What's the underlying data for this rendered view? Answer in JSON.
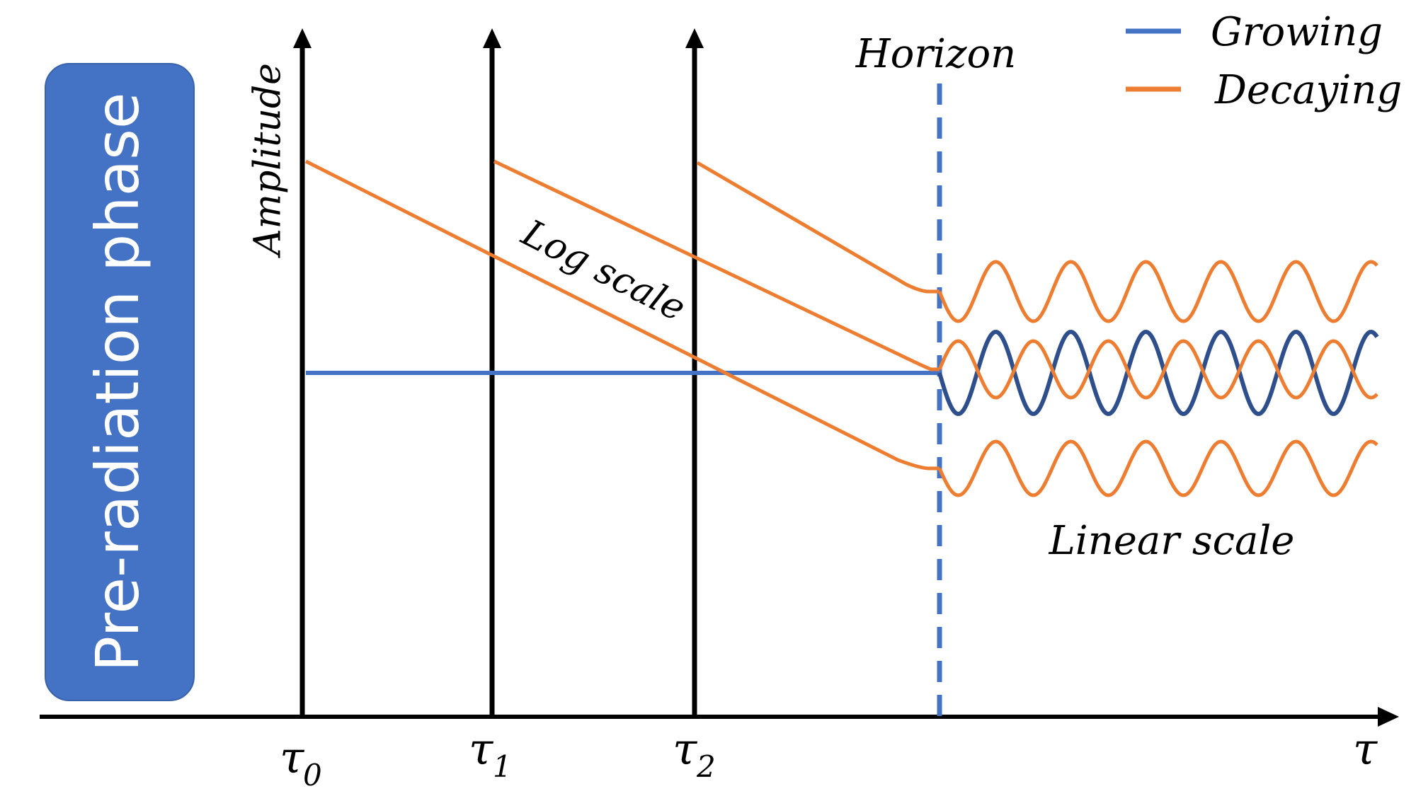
{
  "phase_box": {
    "label": "Pre-radiation phase",
    "color": "#4472C4"
  },
  "axes": {
    "y_label": "Amplitude",
    "x_label": "τ"
  },
  "time_markers": [
    {
      "base": "τ",
      "sub": "0"
    },
    {
      "base": "τ",
      "sub": "1"
    },
    {
      "base": "τ",
      "sub": "2"
    }
  ],
  "horizon": {
    "label": "Horizon",
    "color": "#4472C4"
  },
  "annotations": {
    "log_scale": "Log scale",
    "linear_scale": "Linear scale"
  },
  "legend": [
    {
      "name": "Growing",
      "color": "#4472C4"
    },
    {
      "name": "Decaying",
      "color": "#ED7D31"
    }
  ],
  "colors": {
    "growing": "#4472C4",
    "growing_dark": "#2F4E8C",
    "decaying": "#ED7D31",
    "axis": "#000000"
  }
}
